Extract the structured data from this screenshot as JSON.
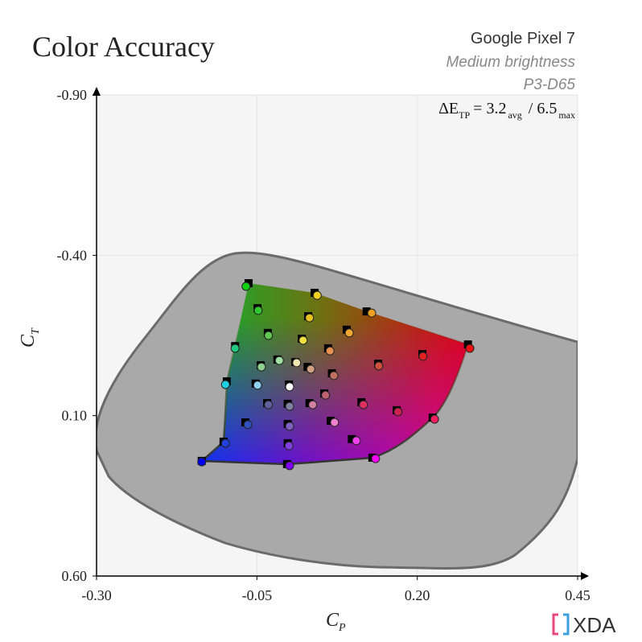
{
  "chart_data": {
    "type": "scatter",
    "title": "Color Accuracy",
    "subtitle": [
      "Google Pixel 7",
      "Medium brightness",
      "P3-D65"
    ],
    "delta_e": {
      "label": "ΔE",
      "subscript": "TP",
      "equals": "=",
      "avg": 3.2,
      "avg_label": "avg",
      "separator": "/",
      "max": 6.5,
      "max_label": "max"
    },
    "xlabel": "C",
    "xlabel_sub": "P",
    "ylabel": "C",
    "ylabel_sub": "T",
    "logo": "XDA",
    "xlim": [
      -0.3,
      0.45
    ],
    "xticks": [
      {
        "value": -0.3,
        "label": "-0.30"
      },
      {
        "value": -0.05,
        "label": "-0.05"
      },
      {
        "value": 0.2,
        "label": "0.20"
      },
      {
        "value": 0.45,
        "label": "0.45"
      }
    ],
    "ylim": [
      -0.9,
      0.6
    ],
    "yticks": [
      {
        "value": -0.9,
        "label": "-0.90"
      },
      {
        "value": -0.4,
        "label": "-0.40"
      },
      {
        "value": 0.1,
        "label": "0.10"
      },
      {
        "value": 0.6,
        "label": "0.60"
      }
    ],
    "y_inverted": true,
    "grid": true,
    "targets": {
      "color": "#000000",
      "x": [
        -0.063,
        -0.049,
        -0.033,
        -0.084,
        0.04,
        0.03,
        0.02,
        0.121,
        0.09,
        0.061,
        0.279,
        0.208,
        0.139,
        -0.018,
        0.01,
        0.029,
        0.067,
        -0.044,
        -0.097,
        -0.052,
        0.0,
        0.055,
        -0.034,
        -0.002,
        0.032,
        0.113,
        0.168,
        0.224,
        0.065,
        -0.068,
        -0.002,
        0.098,
        -0.102,
        -0.002,
        -0.136,
        -0.003,
        0.13
      ],
      "y": [
        -0.313,
        -0.235,
        -0.158,
        -0.117,
        -0.283,
        -0.21,
        -0.14,
        -0.225,
        -0.168,
        -0.11,
        -0.122,
        -0.092,
        -0.062,
        -0.075,
        -0.067,
        -0.052,
        -0.032,
        -0.057,
        -0.007,
        0.0,
        0.003,
        0.031,
        0.061,
        0.063,
        0.061,
        0.058,
        0.083,
        0.106,
        0.116,
        0.121,
        0.126,
        0.173,
        0.181,
        0.186,
        0.241,
        0.251,
        0.231
      ]
    },
    "measured": {
      "x": [
        -0.067,
        -0.048,
        -0.032,
        -0.084,
        0.044,
        0.032,
        0.022,
        0.129,
        0.094,
        0.064,
        0.282,
        0.209,
        0.14,
        -0.015,
        0.012,
        0.034,
        0.07,
        -0.043,
        -0.099,
        -0.049,
        0.001,
        0.057,
        -0.032,
        0.001,
        0.037,
        0.116,
        0.17,
        0.227,
        0.071,
        -0.064,
        0.001,
        0.105,
        -0.099,
        0.0,
        -0.136,
        0.001,
        0.135
      ],
      "y": [
        -0.303,
        -0.228,
        -0.15,
        -0.11,
        -0.275,
        -0.205,
        -0.135,
        -0.22,
        -0.158,
        -0.102,
        -0.11,
        -0.085,
        -0.055,
        -0.072,
        -0.065,
        -0.045,
        -0.025,
        -0.052,
        0.003,
        0.005,
        0.01,
        0.036,
        0.066,
        0.071,
        0.066,
        0.066,
        0.088,
        0.111,
        0.121,
        0.128,
        0.133,
        0.178,
        0.186,
        0.194,
        0.244,
        0.256,
        0.234
      ],
      "colors": [
        "#10d010",
        "#30c830",
        "#60c850",
        "#20c880",
        "#f0d020",
        "#e8c020",
        "#f0e040",
        "#f0a020",
        "#f0a830",
        "#e89050",
        "#f01010",
        "#e02020",
        "#d05040",
        "#a0e0a0",
        "#f0e8b0",
        "#d0a080",
        "#c07060",
        "#90d090",
        "#20d0e0",
        "#90d0f0",
        "#ffffff",
        "#c06070",
        "#6060a0",
        "#8080a0",
        "#d080a0",
        "#e03060",
        "#d02050",
        "#f02060",
        "#f080d0",
        "#3050c0",
        "#8060c0",
        "#f040f0",
        "#2040e0",
        "#8040e0",
        "#0000f0",
        "#8000ff",
        "#ff00ff"
      ]
    }
  }
}
